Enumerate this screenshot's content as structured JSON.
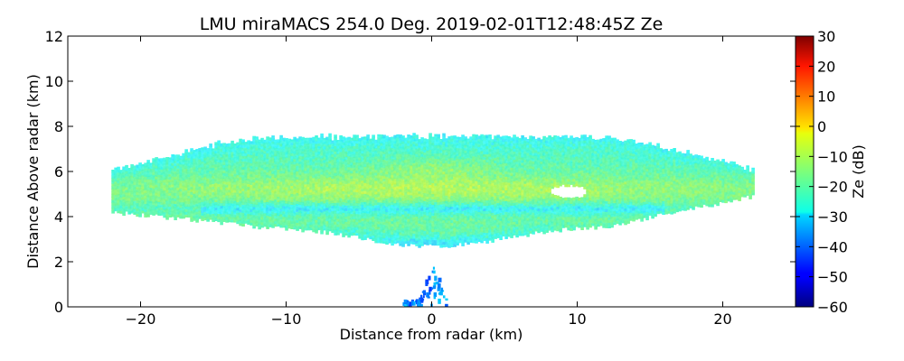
{
  "chart_data": {
    "type": "heatmap",
    "title": "LMU miraMACS 254.0 Deg. 2019-02-01T12:48:45Z  Ze",
    "xlabel": "Distance from radar (km)",
    "ylabel": "Distance Above radar  (km)",
    "xlim": [
      -25,
      25
    ],
    "ylim": [
      0,
      12
    ],
    "xticks": [
      -20,
      -10,
      0,
      10,
      20
    ],
    "xtick_labels": [
      "−20",
      "−10",
      "0",
      "10",
      "20"
    ],
    "yticks": [
      0,
      2,
      4,
      6,
      8,
      10,
      12
    ],
    "ytick_labels": [
      "0",
      "2",
      "4",
      "6",
      "8",
      "10",
      "12"
    ],
    "colorbar": {
      "label": "Ze (dB)",
      "range": [
        -60,
        30
      ],
      "ticks": [
        -60,
        -50,
        -40,
        -30,
        -20,
        -10,
        0,
        10,
        20,
        30
      ],
      "tick_labels": [
        "−60",
        "−50",
        "−40",
        "−30",
        "−20",
        "−10",
        "0",
        "10",
        "20",
        "30"
      ],
      "colormap": "jet"
    },
    "cloud_layer": {
      "x_range": [
        -22,
        22
      ],
      "bottom_km": 2.7,
      "top_km": 7.5,
      "typical_ze_db": [
        -30,
        -5
      ],
      "peak_ze_db": -5
    },
    "clutter_near_ground": {
      "x_range": [
        -2,
        1
      ],
      "height_range": [
        0,
        1.8
      ],
      "typical_ze_db": [
        -45,
        -30
      ]
    }
  }
}
